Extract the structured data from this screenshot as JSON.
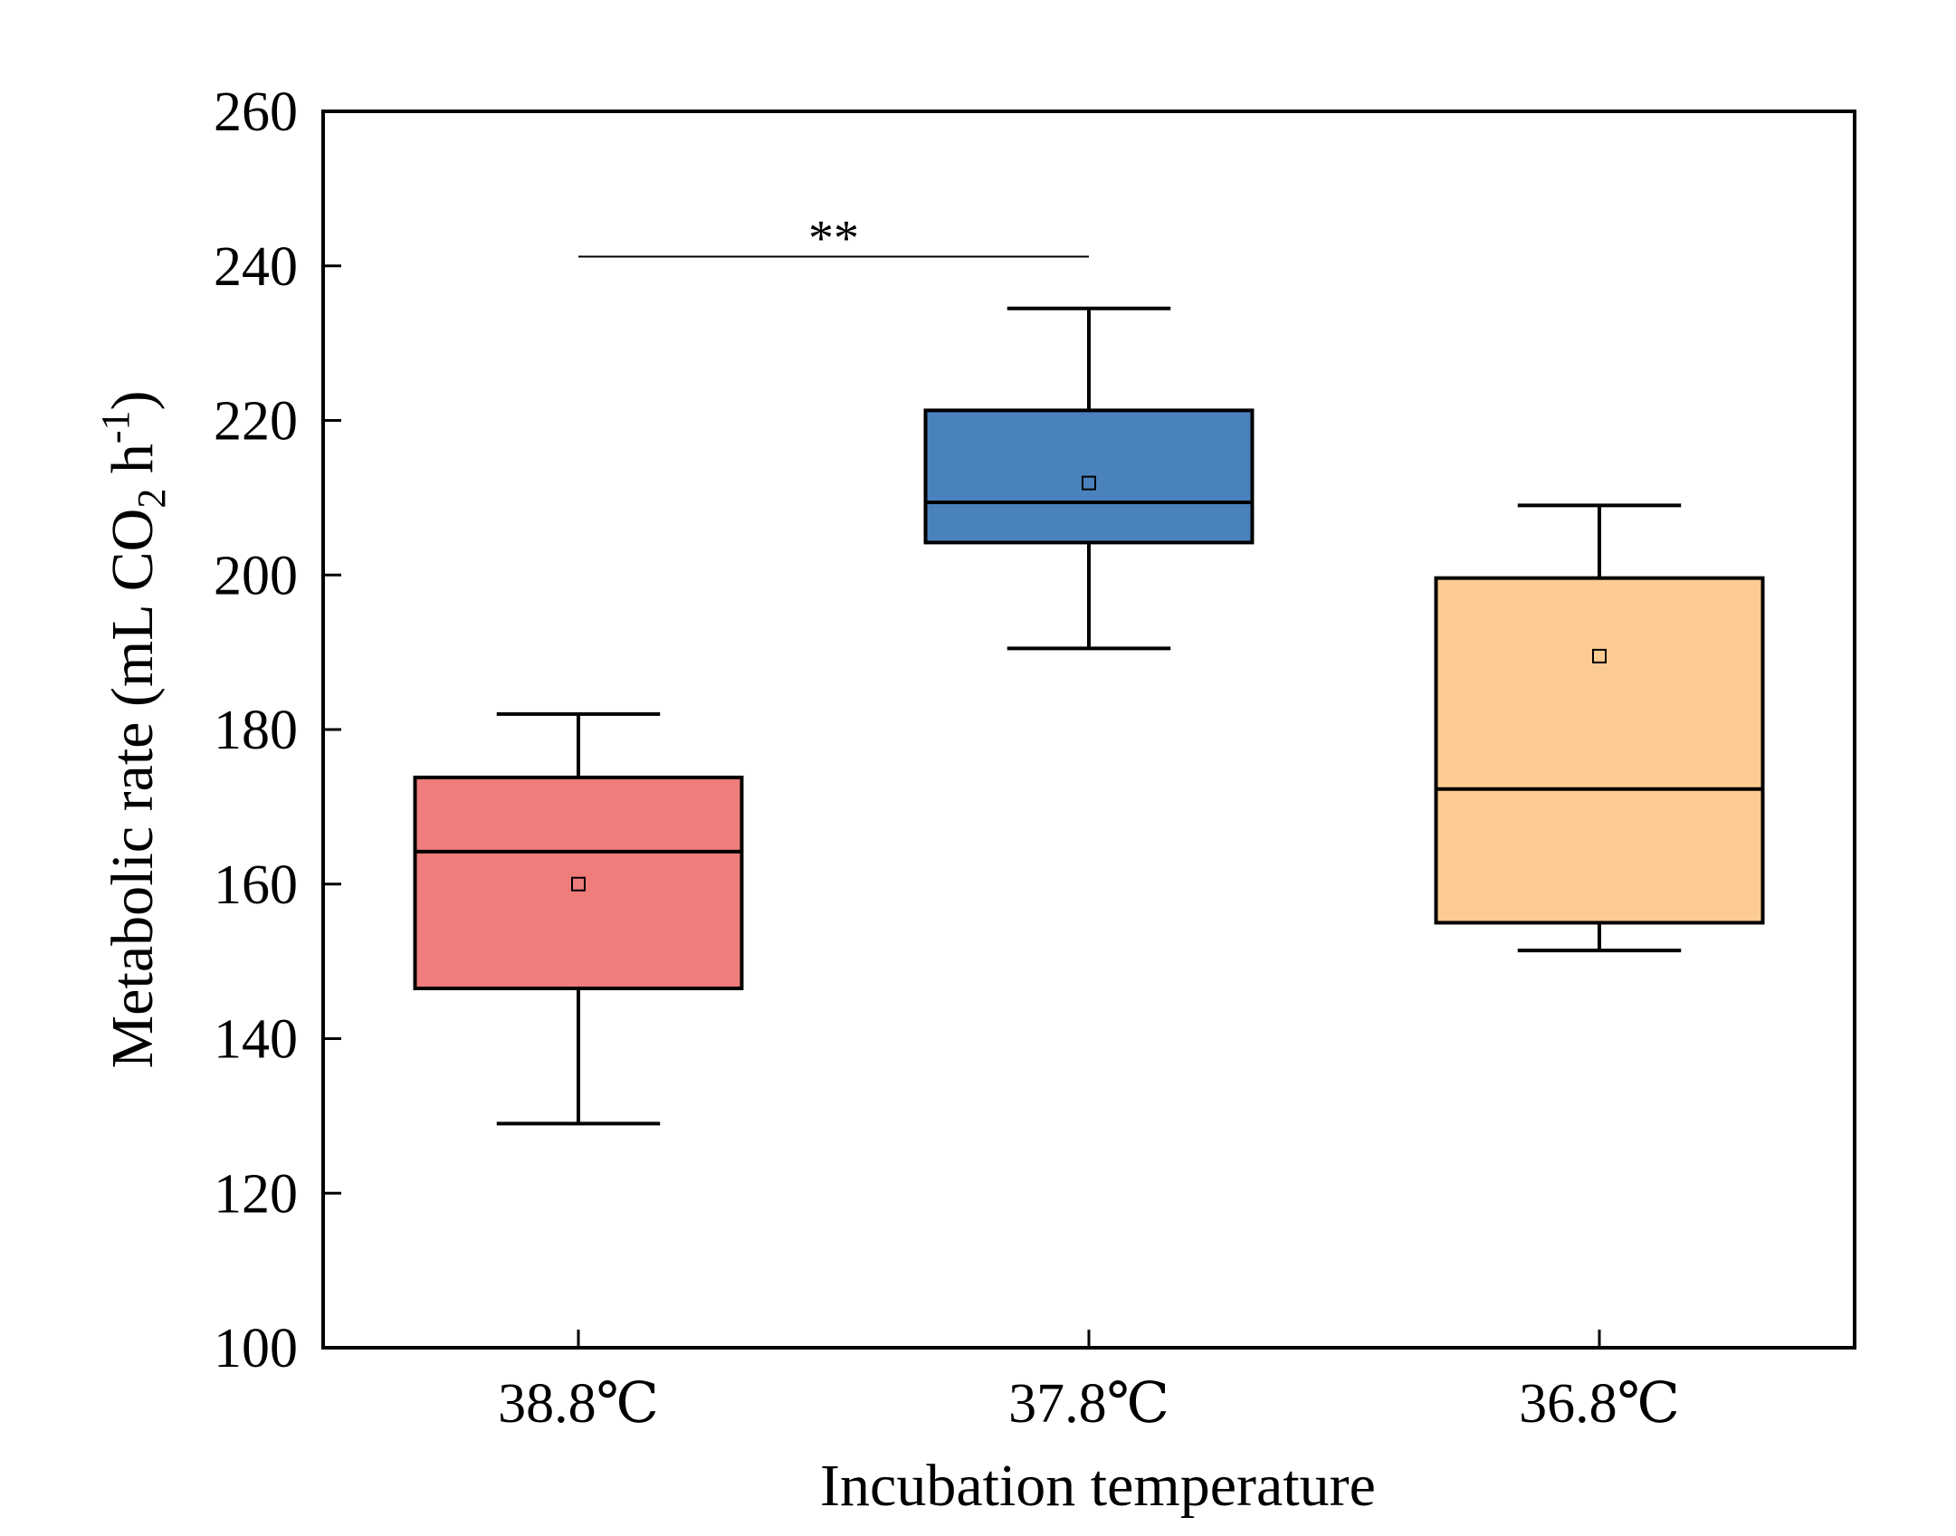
{
  "chart_data": {
    "type": "box",
    "xlabel": "Incubation temperature",
    "ylabel": {
      "prefix": "Metabolic rate (mL CO",
      "sub": "2",
      "middle": " h",
      "sup": "-1",
      "suffix": ")"
    },
    "ylim": [
      100,
      260
    ],
    "yticks": [
      "100",
      "120",
      "140",
      "160",
      "180",
      "200",
      "220",
      "240",
      "260"
    ],
    "categories": [
      "38.8℃",
      "37.8℃",
      "36.8℃"
    ],
    "boxes": [
      {
        "category": "38.8℃",
        "whisker_low": 129,
        "q1": 146.5,
        "median": 164.2,
        "q3": 173.8,
        "whisker_high": 182,
        "mean": 160,
        "color": "#ef7d7c"
      },
      {
        "category": "37.8℃",
        "whisker_low": 190.5,
        "q1": 204.2,
        "median": 209.4,
        "q3": 221.3,
        "whisker_high": 234.5,
        "mean": 211.9,
        "color": "#4a82bd"
      },
      {
        "category": "36.8℃",
        "whisker_low": 151.4,
        "q1": 155,
        "median": 172.3,
        "q3": 199.6,
        "whisker_high": 209,
        "mean": 189.5,
        "color": "#fdcc92"
      }
    ],
    "significance": {
      "from": "38.8℃",
      "to": "37.8℃",
      "label": "**",
      "y": 241.2
    },
    "grid": false,
    "legend": "none"
  }
}
